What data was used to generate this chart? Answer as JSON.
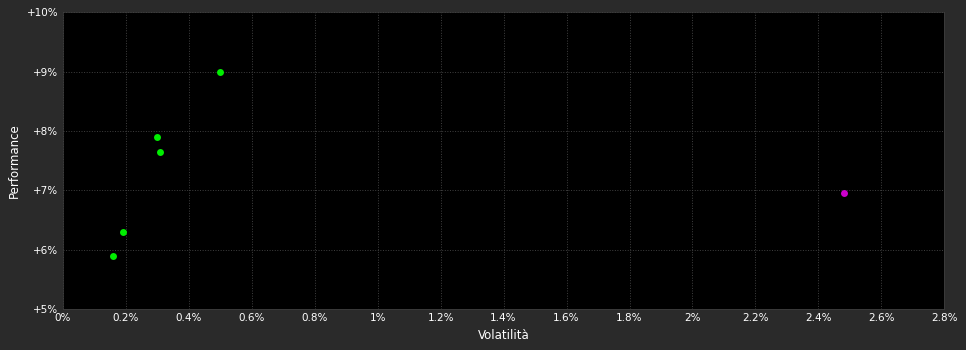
{
  "background_color": "#2a2a2a",
  "plot_bg_color": "#000000",
  "grid_color": "#404040",
  "text_color": "#ffffff",
  "green_points": [
    [
      0.005,
      0.09
    ],
    [
      0.003,
      0.079
    ],
    [
      0.0031,
      0.0765
    ],
    [
      0.0019,
      0.063
    ],
    [
      0.0016,
      0.059
    ]
  ],
  "magenta_point": [
    0.0248,
    0.0695
  ],
  "green_color": "#00ee00",
  "magenta_color": "#cc00cc",
  "xlabel": "Volatilità",
  "ylabel": "Performance",
  "xlim": [
    0.0,
    0.028
  ],
  "ylim": [
    0.05,
    0.1
  ],
  "xtick_vals": [
    0.0,
    0.002,
    0.004,
    0.006,
    0.008,
    0.01,
    0.012,
    0.014,
    0.016,
    0.018,
    0.02,
    0.022,
    0.024,
    0.026,
    0.028
  ],
  "xtick_labels": [
    "0%",
    "0.2%",
    "0.4%",
    "0.6%",
    "0.8%",
    "1%",
    "1.2%",
    "1.4%",
    "1.6%",
    "1.8%",
    "2%",
    "2.2%",
    "2.4%",
    "2.6%",
    "2.8%"
  ],
  "ytick_vals": [
    0.05,
    0.06,
    0.07,
    0.08,
    0.09,
    0.1
  ],
  "ytick_labels": [
    "+5%",
    "+6%",
    "+7%",
    "+8%",
    "+9%",
    "+10%"
  ],
  "marker_size": 5,
  "figsize": [
    9.66,
    3.5
  ],
  "dpi": 100
}
